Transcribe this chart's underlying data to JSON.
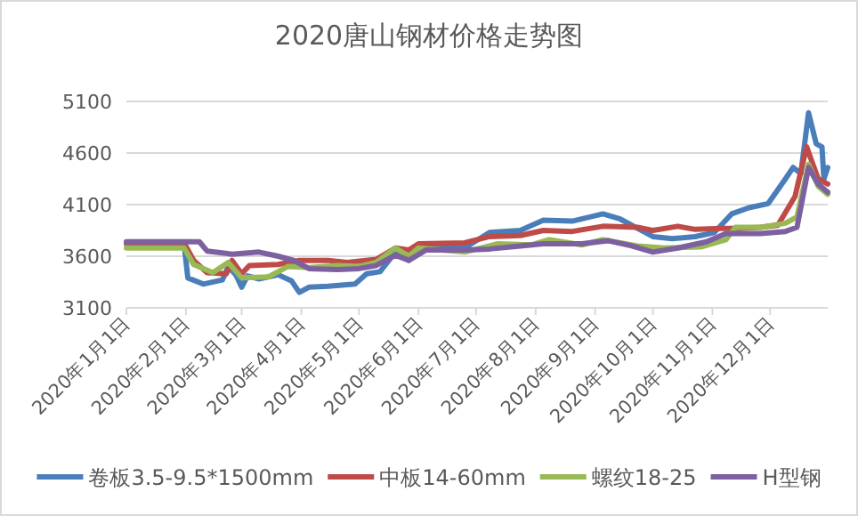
{
  "chart_data": {
    "type": "line",
    "title": "2020唐山钢材价格走势图",
    "xlim": [
      "2020-01-01",
      "2020-12-31"
    ],
    "xticks": [
      {
        "value": "2020-01-01",
        "label": "2020年1月1日"
      },
      {
        "value": "2020-02-01",
        "label": "2020年2月1日"
      },
      {
        "value": "2020-03-01",
        "label": "2020年3月1日"
      },
      {
        "value": "2020-04-01",
        "label": "2020年4月1日"
      },
      {
        "value": "2020-05-01",
        "label": "2020年5月1日"
      },
      {
        "value": "2020-06-01",
        "label": "2020年6月1日"
      },
      {
        "value": "2020-07-01",
        "label": "2020年7月1日"
      },
      {
        "value": "2020-08-01",
        "label": "2020年8月1日"
      },
      {
        "value": "2020-09-01",
        "label": "2020年9月1日"
      },
      {
        "value": "2020-10-01",
        "label": "2020年10月1日"
      },
      {
        "value": "2020-11-01",
        "label": "2020年11月1日"
      },
      {
        "value": "2020-12-01",
        "label": "2020年12月1日"
      }
    ],
    "ylim": [
      3100,
      5100
    ],
    "yticks": [
      3100,
      3600,
      4100,
      4600,
      5100
    ],
    "grid": "y",
    "legend": "bottom",
    "marker": "none",
    "line_style": "solid",
    "series": [
      {
        "name": "卷板3.5-9.5*1500mm",
        "color": "#4a7ebb",
        "x": [
          "2020-01-01",
          "2020-01-31",
          "2020-02-02",
          "2020-02-10",
          "2020-02-20",
          "2020-02-23",
          "2020-02-27",
          "2020-03-01",
          "2020-03-04",
          "2020-03-10",
          "2020-03-20",
          "2020-03-27",
          "2020-03-31",
          "2020-04-05",
          "2020-04-15",
          "2020-04-29",
          "2020-05-05",
          "2020-05-12",
          "2020-05-20",
          "2020-05-27",
          "2020-06-01",
          "2020-06-10",
          "2020-06-25",
          "2020-07-08",
          "2020-07-24",
          "2020-08-05",
          "2020-08-20",
          "2020-09-05",
          "2020-09-14",
          "2020-09-23",
          "2020-10-01",
          "2020-10-11",
          "2020-10-23",
          "2020-11-02",
          "2020-11-11",
          "2020-11-20",
          "2020-11-30",
          "2020-12-09",
          "2020-12-13",
          "2020-12-17",
          "2020-12-21",
          "2020-12-25",
          "2020-12-28",
          "2020-12-29",
          "2020-12-31"
        ],
        "values": [
          3720,
          3720,
          3390,
          3330,
          3370,
          3500,
          3420,
          3300,
          3410,
          3380,
          3420,
          3360,
          3250,
          3300,
          3310,
          3330,
          3430,
          3450,
          3640,
          3560,
          3680,
          3690,
          3680,
          3830,
          3850,
          3950,
          3940,
          4010,
          3960,
          3870,
          3790,
          3770,
          3790,
          3830,
          4010,
          4070,
          4110,
          4350,
          4460,
          4400,
          4990,
          4690,
          4660,
          4350,
          4460
        ]
      },
      {
        "name": "中板14-60mm",
        "color": "#be4b48",
        "x": [
          "2020-01-01",
          "2020-01-31",
          "2020-02-05",
          "2020-02-12",
          "2020-02-22",
          "2020-02-25",
          "2020-03-01",
          "2020-03-05",
          "2020-03-20",
          "2020-03-31",
          "2020-04-15",
          "2020-04-25",
          "2020-05-10",
          "2020-05-20",
          "2020-05-27",
          "2020-06-01",
          "2020-06-25",
          "2020-07-08",
          "2020-07-24",
          "2020-08-05",
          "2020-08-20",
          "2020-09-05",
          "2020-09-23",
          "2020-10-01",
          "2020-10-14",
          "2020-10-23",
          "2020-11-06",
          "2020-11-15",
          "2020-11-26",
          "2020-12-05",
          "2020-12-14",
          "2020-12-20",
          "2020-12-26",
          "2020-12-31"
        ],
        "values": [
          3730,
          3730,
          3560,
          3440,
          3430,
          3560,
          3430,
          3510,
          3520,
          3560,
          3560,
          3540,
          3570,
          3680,
          3660,
          3720,
          3730,
          3790,
          3800,
          3850,
          3840,
          3890,
          3880,
          3850,
          3890,
          3860,
          3870,
          3870,
          3880,
          3900,
          4180,
          4660,
          4350,
          4300
        ]
      },
      {
        "name": "螺纹18-25",
        "color": "#98b954",
        "x": [
          "2020-01-01",
          "2020-01-31",
          "2020-02-05",
          "2020-02-15",
          "2020-02-23",
          "2020-03-01",
          "2020-03-15",
          "2020-03-25",
          "2020-04-05",
          "2020-04-20",
          "2020-05-01",
          "2020-05-10",
          "2020-05-20",
          "2020-05-27",
          "2020-06-01",
          "2020-06-25",
          "2020-07-12",
          "2020-07-30",
          "2020-08-08",
          "2020-08-25",
          "2020-09-05",
          "2020-09-23",
          "2020-10-07",
          "2020-10-26",
          "2020-11-08",
          "2020-11-13",
          "2020-11-26",
          "2020-12-09",
          "2020-12-15",
          "2020-12-21",
          "2020-12-26",
          "2020-12-31"
        ],
        "values": [
          3680,
          3680,
          3520,
          3440,
          3540,
          3390,
          3400,
          3500,
          3490,
          3510,
          3500,
          3540,
          3680,
          3600,
          3680,
          3640,
          3720,
          3710,
          3760,
          3710,
          3760,
          3700,
          3680,
          3690,
          3760,
          3880,
          3880,
          3920,
          3980,
          4490,
          4280,
          4200
        ]
      },
      {
        "name": "H型钢",
        "color": "#7d60a0",
        "x": [
          "2020-01-01",
          "2020-02-08",
          "2020-02-12",
          "2020-02-25",
          "2020-03-10",
          "2020-03-20",
          "2020-03-28",
          "2020-04-05",
          "2020-04-20",
          "2020-05-01",
          "2020-05-10",
          "2020-05-20",
          "2020-05-27",
          "2020-06-05",
          "2020-06-25",
          "2020-07-08",
          "2020-07-24",
          "2020-08-05",
          "2020-08-25",
          "2020-09-08",
          "2020-09-20",
          "2020-10-01",
          "2020-10-14",
          "2020-10-29",
          "2020-11-08",
          "2020-11-26",
          "2020-12-09",
          "2020-12-15",
          "2020-12-21",
          "2020-12-26",
          "2020-12-31"
        ],
        "values": [
          3740,
          3740,
          3650,
          3620,
          3640,
          3600,
          3560,
          3480,
          3470,
          3480,
          3510,
          3610,
          3560,
          3660,
          3660,
          3670,
          3700,
          3720,
          3720,
          3750,
          3700,
          3640,
          3680,
          3740,
          3820,
          3820,
          3840,
          3880,
          4460,
          4300,
          4220
        ]
      }
    ]
  }
}
